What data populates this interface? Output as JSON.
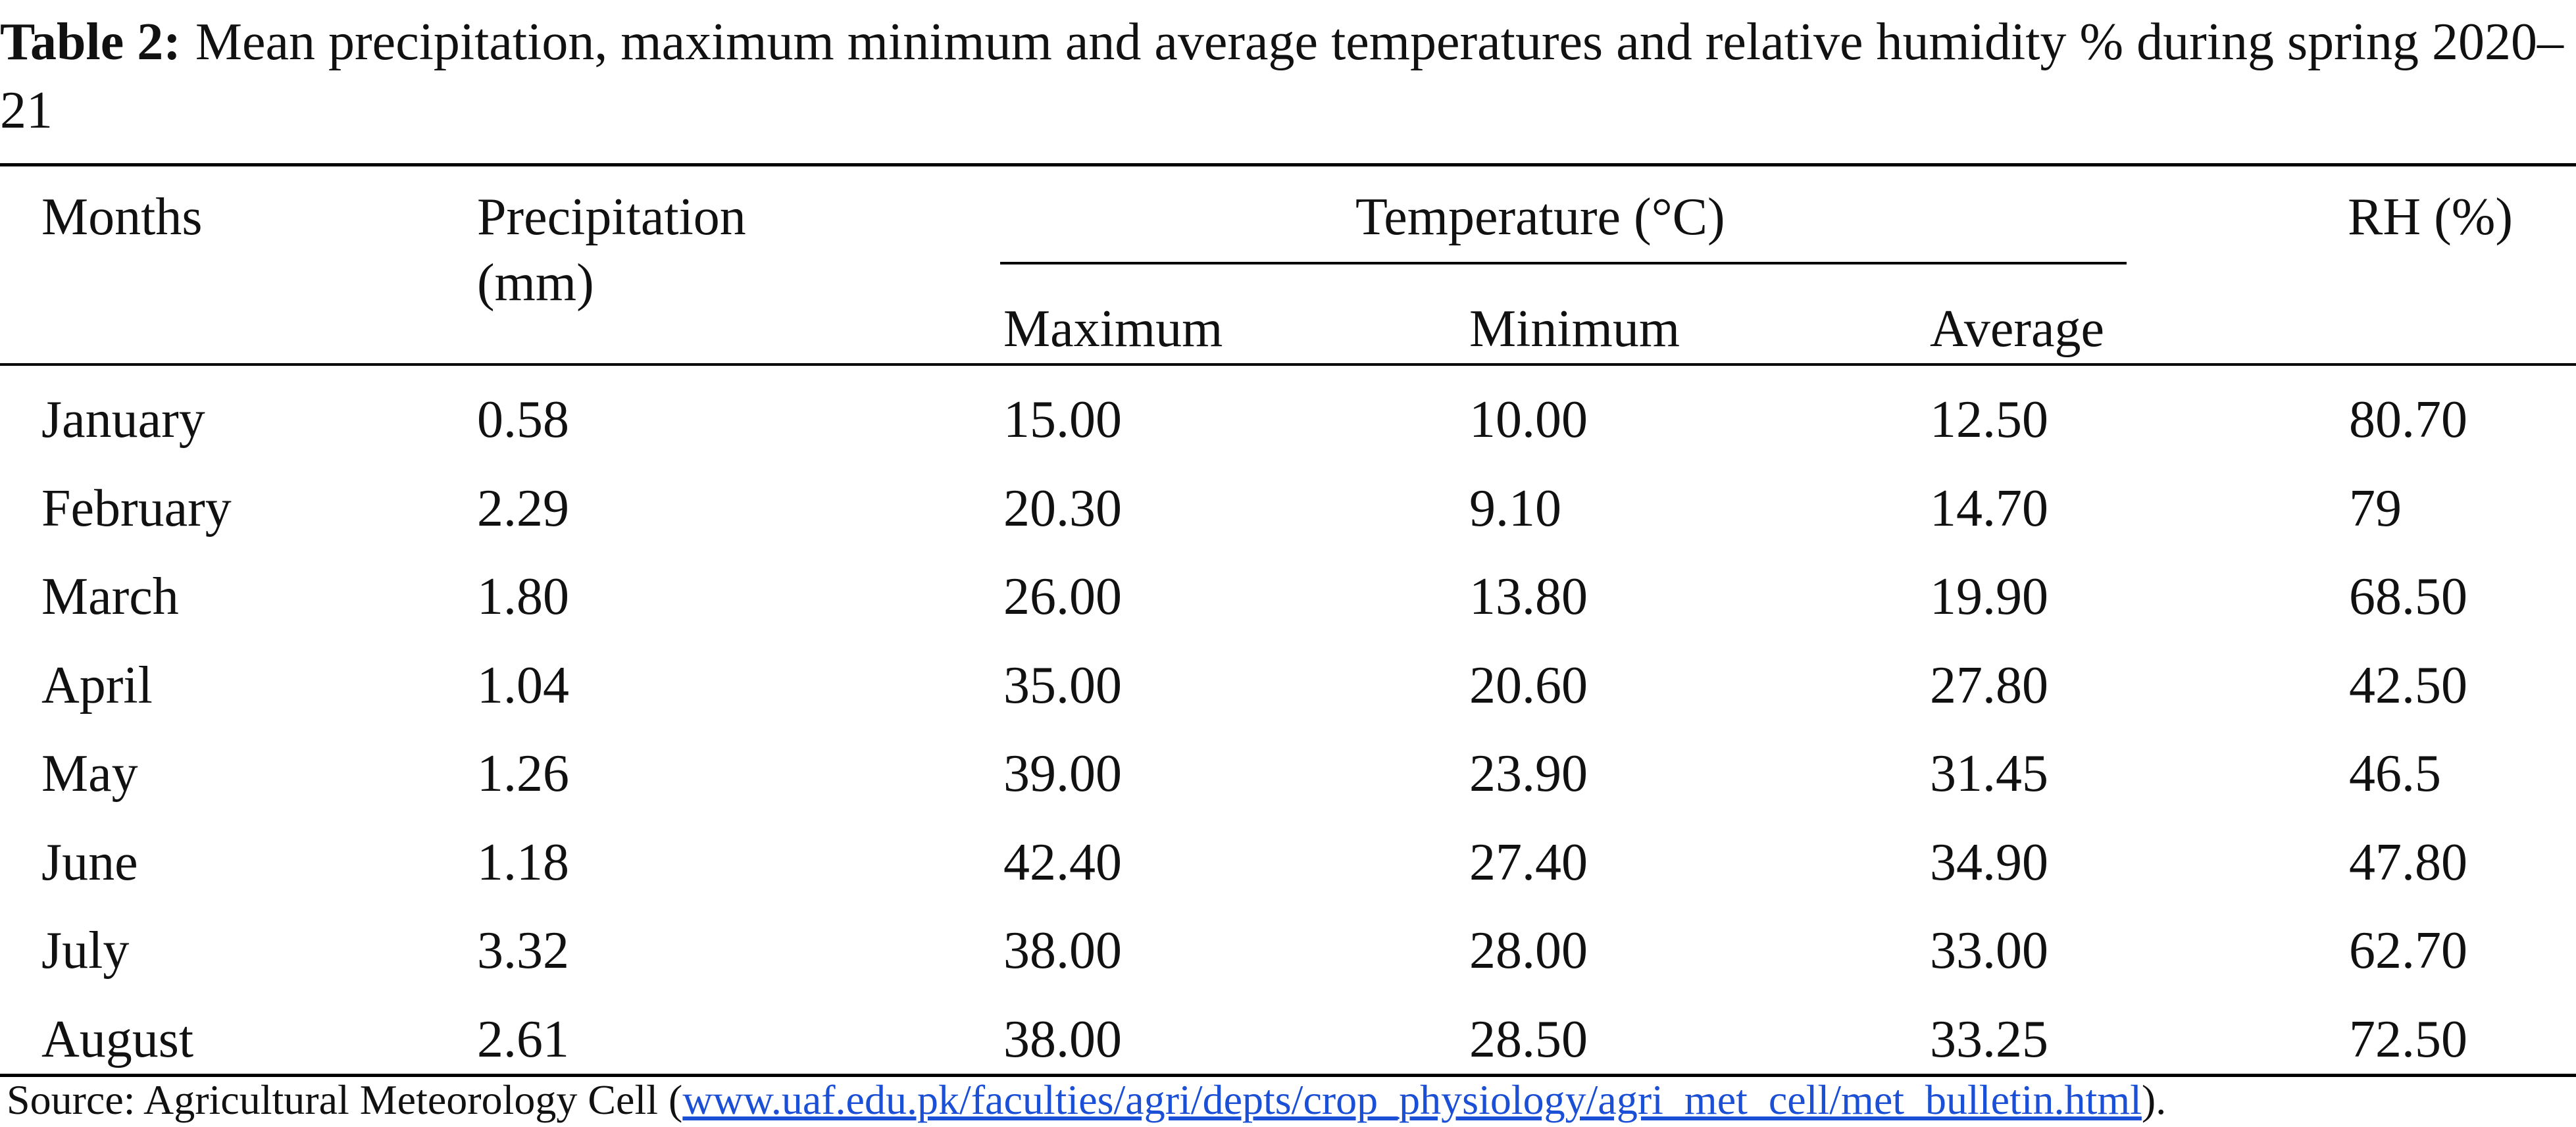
{
  "title": {
    "label": "Table 2:",
    "text": "Mean precipitation, maximum minimum and average temperatures and relative humidity % during spring 2020–21"
  },
  "table": {
    "headers": {
      "months": "Months",
      "precipitation": "Precipitation (mm)",
      "temperature": "Temperature (°C)",
      "maximum": "Maximum",
      "minimum": "Minimum",
      "average": "Average",
      "rh": "RH (%)"
    },
    "rows": [
      [
        "January",
        "0.58",
        "15.00",
        "10.00",
        "12.50",
        "80.70"
      ],
      [
        "February",
        "2.29",
        "20.30",
        "9.10",
        "14.70",
        "79"
      ],
      [
        "March",
        "1.80",
        "26.00",
        "13.80",
        "19.90",
        "68.50"
      ],
      [
        "April",
        "1.04",
        "35.00",
        "20.60",
        "27.80",
        "42.50"
      ],
      [
        "May",
        "1.26",
        "39.00",
        "23.90",
        "31.45",
        "46.5"
      ],
      [
        "June",
        "1.18",
        "42.40",
        "27.40",
        "34.90",
        "47.80"
      ],
      [
        "July",
        "3.32",
        "38.00",
        "28.00",
        "33.00",
        "62.70"
      ],
      [
        "August",
        "2.61",
        "38.00",
        "28.50",
        "33.25",
        "72.50"
      ]
    ]
  },
  "source": {
    "text": "Source: Agricultural Meteorology Cell (",
    "url": "www.uaf.edu.pk/faculties/agri/depts/crop_physiology/agri_met_cell/met_bulletin.html",
    "end": ")."
  }
}
